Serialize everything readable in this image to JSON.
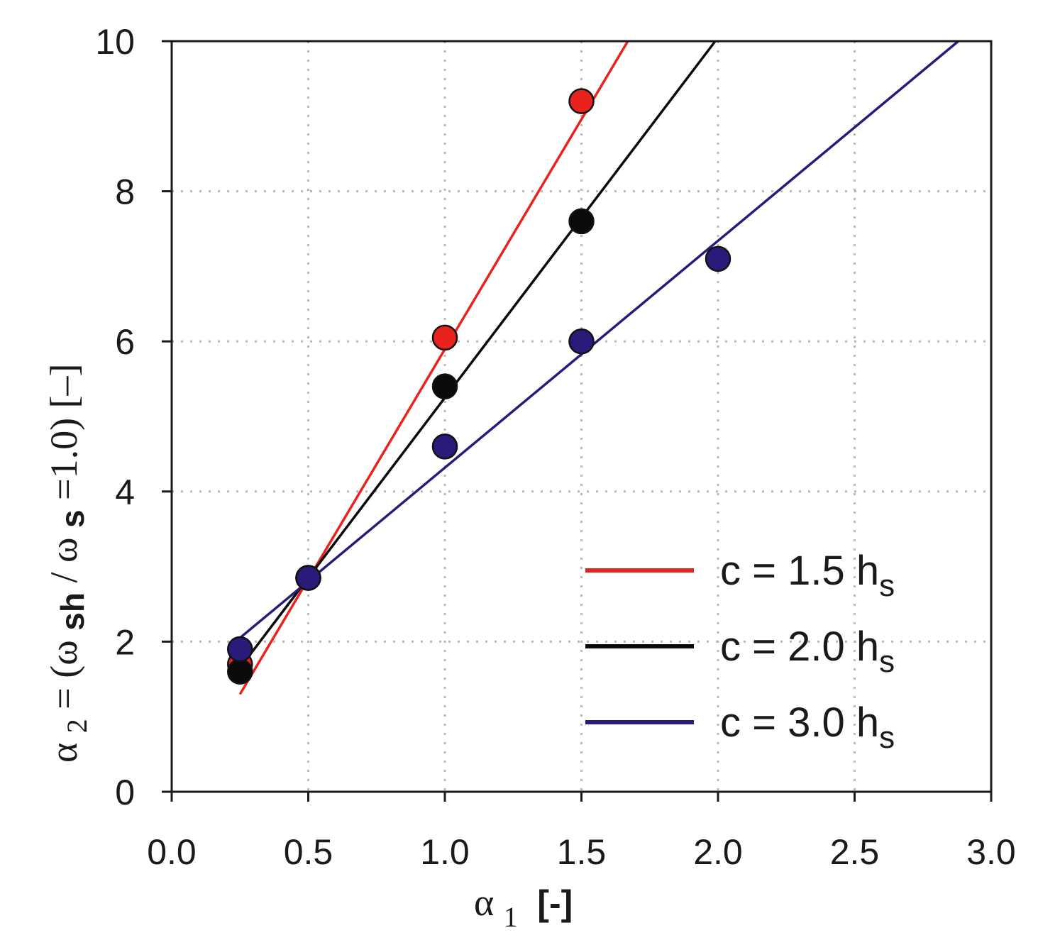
{
  "chart_data": {
    "type": "scatter",
    "x_axis": {
      "label_symbol": "α",
      "label_subscript": "1",
      "label_units": "[-]",
      "range": [
        0.0,
        3.0
      ],
      "ticks": [
        0.0,
        0.5,
        1.0,
        1.5,
        2.0,
        2.5,
        3.0
      ],
      "tick_labels": [
        "0.0",
        "0.5",
        "1.0",
        "1.5",
        "2.0",
        "2.5",
        "3.0"
      ]
    },
    "y_axis": {
      "label_parts": [
        "α",
        "2",
        " = (ω",
        "sh",
        " / ω",
        "s",
        " =1.0)  [–]"
      ],
      "range": [
        0,
        10
      ],
      "ticks": [
        0,
        2,
        4,
        6,
        8,
        10
      ],
      "tick_labels": [
        "0",
        "2",
        "4",
        "6",
        "8",
        "10"
      ]
    },
    "grid": "dotted",
    "legend_position": "bottom-right",
    "series": [
      {
        "name": "c = 1.5 hs",
        "legend_text": "c = 1.5 h",
        "legend_sub": "s",
        "color": "#e8231d",
        "points": [
          {
            "x": 0.25,
            "y": 1.7
          },
          {
            "x": 0.5,
            "y": 2.85
          },
          {
            "x": 1.0,
            "y": 6.05
          },
          {
            "x": 1.5,
            "y": 9.2
          }
        ],
        "fit_line": [
          {
            "x": 0.25,
            "y": 1.3
          },
          {
            "x": 1.67,
            "y": 10.0
          }
        ]
      },
      {
        "name": "c = 2.0 hs",
        "legend_text": "c = 2.0 h",
        "legend_sub": "s",
        "color": "#0a0a0a",
        "points": [
          {
            "x": 0.25,
            "y": 1.6
          },
          {
            "x": 0.5,
            "y": 2.85
          },
          {
            "x": 1.0,
            "y": 5.4
          },
          {
            "x": 1.5,
            "y": 7.6
          }
        ],
        "fit_line": [
          {
            "x": 0.25,
            "y": 1.65
          },
          {
            "x": 1.99,
            "y": 10.0
          }
        ]
      },
      {
        "name": "c = 3.0 hs",
        "legend_text": "c = 3.0 h",
        "legend_sub": "s",
        "color": "#2b1a7a",
        "points": [
          {
            "x": 0.25,
            "y": 1.9
          },
          {
            "x": 0.5,
            "y": 2.85
          },
          {
            "x": 1.0,
            "y": 4.6
          },
          {
            "x": 1.5,
            "y": 6.0
          },
          {
            "x": 2.0,
            "y": 7.1
          }
        ],
        "fit_line": [
          {
            "x": 0.25,
            "y": 2.05
          },
          {
            "x": 2.88,
            "y": 10.0
          }
        ]
      }
    ]
  }
}
